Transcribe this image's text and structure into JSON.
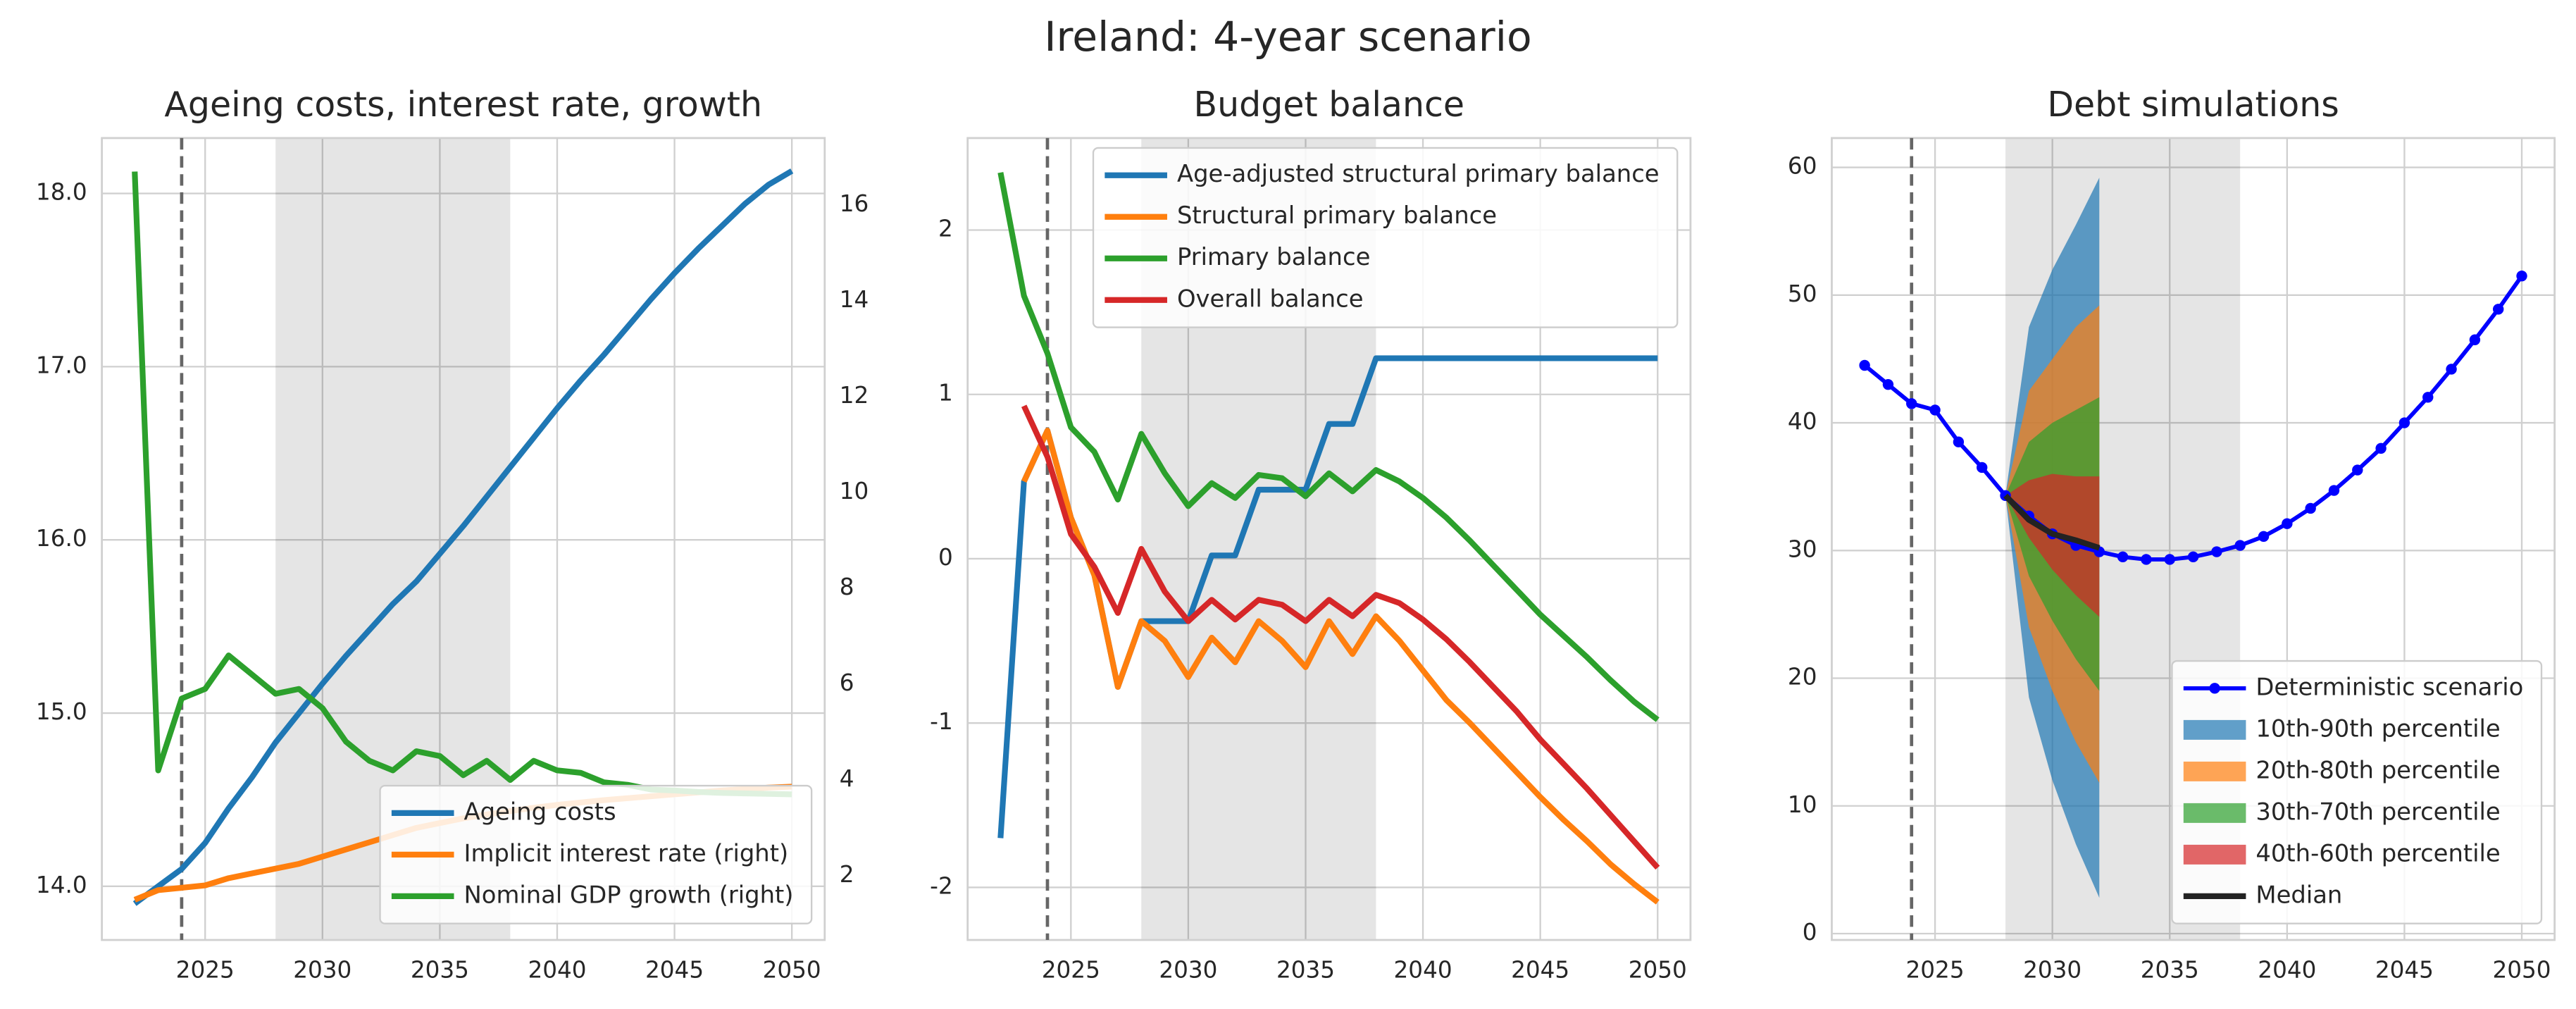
{
  "title": "Ireland: 4-year scenario",
  "chart_data": [
    {
      "type": "line",
      "title": "Ageing costs, interest rate, growth",
      "x": [
        2022,
        2023,
        2024,
        2025,
        2026,
        2027,
        2028,
        2029,
        2030,
        2031,
        2032,
        2033,
        2034,
        2035,
        2036,
        2037,
        2038,
        2039,
        2040,
        2041,
        2042,
        2043,
        2044,
        2045,
        2046,
        2047,
        2048,
        2049,
        2050
      ],
      "xlim": [
        2020.6,
        2051.4
      ],
      "xticks": [
        2025,
        2030,
        2035,
        2040,
        2045,
        2050
      ],
      "ylim": [
        13.69,
        18.32
      ],
      "yticks": [
        {
          "value": 14,
          "label": "14.0"
        },
        {
          "value": 15,
          "label": "15.0"
        },
        {
          "value": 16,
          "label": "16.0"
        },
        {
          "value": 17,
          "label": "17.0"
        },
        {
          "value": 18,
          "label": "18.0"
        }
      ],
      "y2lim": [
        0.66,
        17.4
      ],
      "y2ticks": [
        2,
        4,
        6,
        8,
        10,
        12,
        14,
        16
      ],
      "grid": true,
      "legend": "lower right",
      "vline": 2024,
      "shade": [
        2028,
        2038
      ],
      "series": [
        {
          "name": "Ageing costs",
          "color": "#1f77b4",
          "values": [
            13.9,
            14.0,
            14.1,
            14.25,
            14.45,
            14.63,
            14.83,
            15.0,
            15.17,
            15.33,
            15.48,
            15.63,
            15.76,
            15.92,
            16.08,
            16.25,
            16.42,
            16.59,
            16.76,
            16.92,
            17.07,
            17.23,
            17.39,
            17.54,
            17.68,
            17.81,
            17.94,
            18.05,
            18.13
          ]
        },
        {
          "name": "Implicit interest rate (right)",
          "color": "#ff7f0e",
          "axis": "y2",
          "values": [
            1.5,
            1.7,
            1.75,
            1.8,
            1.95,
            2.05,
            2.15,
            2.25,
            2.4,
            2.55,
            2.7,
            2.85,
            3.0,
            3.1,
            3.2,
            3.28,
            3.35,
            3.42,
            3.48,
            3.53,
            3.58,
            3.62,
            3.66,
            3.7,
            3.74,
            3.78,
            3.81,
            3.84,
            3.86
          ]
        },
        {
          "name": "Nominal GDP growth (right)",
          "color": "#2ca02c",
          "axis": "y2",
          "values": [
            16.7,
            4.2,
            5.7,
            5.9,
            6.6,
            6.2,
            5.8,
            5.9,
            5.5,
            4.8,
            4.4,
            4.2,
            4.6,
            4.5,
            4.1,
            4.4,
            4.0,
            4.4,
            4.2,
            4.15,
            3.95,
            3.9,
            3.8,
            3.78,
            3.75,
            3.73,
            3.72,
            3.71,
            3.7
          ]
        }
      ]
    },
    {
      "type": "line",
      "title": "Budget balance",
      "x": [
        2022,
        2023,
        2024,
        2025,
        2026,
        2027,
        2028,
        2029,
        2030,
        2031,
        2032,
        2033,
        2034,
        2035,
        2036,
        2037,
        2038,
        2039,
        2040,
        2041,
        2042,
        2043,
        2044,
        2045,
        2046,
        2047,
        2048,
        2049,
        2050
      ],
      "xlim": [
        2020.6,
        2051.4
      ],
      "xticks": [
        2025,
        2030,
        2035,
        2040,
        2045,
        2050
      ],
      "ylim": [
        -2.32,
        2.56
      ],
      "yticks": [
        -2,
        -1,
        0,
        1,
        2
      ],
      "grid": true,
      "legend": "upper right",
      "vline": 2024,
      "shade": [
        2028,
        2038
      ],
      "series": [
        {
          "name": "Age-adjusted structural primary balance",
          "color": "#1f77b4",
          "values": [
            -1.7,
            0.47,
            0.78,
            0.25,
            -0.1,
            -0.78,
            -0.38,
            -0.38,
            -0.38,
            0.02,
            0.02,
            0.42,
            0.42,
            0.42,
            0.82,
            0.82,
            1.22,
            1.22,
            1.22,
            1.22,
            1.22,
            1.22,
            1.22,
            1.22,
            1.22,
            1.22,
            1.22,
            1.22,
            1.22
          ]
        },
        {
          "name": "Structural primary balance",
          "color": "#ff7f0e",
          "values": [
            null,
            0.47,
            0.78,
            0.25,
            -0.1,
            -0.78,
            -0.38,
            -0.5,
            -0.72,
            -0.48,
            -0.63,
            -0.38,
            -0.5,
            -0.66,
            -0.38,
            -0.58,
            -0.35,
            -0.5,
            -0.68,
            -0.86,
            -1.0,
            -1.15,
            -1.3,
            -1.45,
            -1.59,
            -1.72,
            -1.86,
            -1.98,
            -2.09
          ]
        },
        {
          "name": "Primary balance",
          "color": "#2ca02c",
          "values": [
            2.35,
            1.6,
            1.25,
            0.8,
            0.65,
            0.36,
            0.76,
            0.52,
            0.32,
            0.46,
            0.37,
            0.51,
            0.49,
            0.38,
            0.52,
            0.41,
            0.54,
            0.47,
            0.37,
            0.25,
            0.11,
            -0.04,
            -0.19,
            -0.34,
            -0.47,
            -0.6,
            -0.74,
            -0.87,
            -0.98
          ]
        },
        {
          "name": "Overall balance",
          "color": "#d62728",
          "values": [
            null,
            0.93,
            0.62,
            0.15,
            -0.05,
            -0.33,
            0.06,
            -0.2,
            -0.38,
            -0.25,
            -0.37,
            -0.25,
            -0.28,
            -0.38,
            -0.25,
            -0.35,
            -0.22,
            -0.27,
            -0.37,
            -0.49,
            -0.63,
            -0.78,
            -0.93,
            -1.1,
            -1.25,
            -1.4,
            -1.56,
            -1.72,
            -1.88
          ]
        }
      ]
    },
    {
      "type": "line",
      "title": "Debt simulations",
      "x": [
        2022,
        2023,
        2024,
        2025,
        2026,
        2027,
        2028,
        2029,
        2030,
        2031,
        2032,
        2033,
        2034,
        2035,
        2036,
        2037,
        2038,
        2039,
        2040,
        2041,
        2042,
        2043,
        2044,
        2045,
        2046,
        2047,
        2048,
        2049,
        2050
      ],
      "xlim": [
        2020.6,
        2051.4
      ],
      "xticks": [
        2025,
        2030,
        2035,
        2040,
        2045,
        2050
      ],
      "ylim": [
        -0.5,
        62.3
      ],
      "yticks": [
        0,
        10,
        20,
        30,
        40,
        50,
        60
      ],
      "grid": true,
      "legend": "lower right",
      "vline": 2024,
      "shade": [
        2028,
        2038
      ],
      "series": [
        {
          "name": "Deterministic scenario",
          "color": "#0000ff",
          "marker": "o",
          "values": [
            44.5,
            43,
            41.5,
            41,
            38.5,
            36.5,
            34.3,
            32.7,
            31.3,
            30.4,
            29.9,
            29.5,
            29.3,
            29.3,
            29.5,
            29.9,
            30.4,
            31.1,
            32.1,
            33.3,
            34.7,
            36.3,
            38.0,
            40.0,
            42.0,
            44.2,
            46.5,
            48.9,
            51.5
          ]
        },
        {
          "name": "10th-90th percentile",
          "color": "#1f77b4",
          "x": [
            2028,
            2029,
            2030,
            2031,
            2032
          ],
          "lower": [
            34.3,
            18.5,
            12.0,
            7.0,
            2.8
          ],
          "upper": [
            34.3,
            47.5,
            52,
            55.5,
            59.2
          ]
        },
        {
          "name": "20th-80th percentile",
          "color": "#ff7f0e",
          "x": [
            2028,
            2029,
            2030,
            2031,
            2032
          ],
          "lower": [
            34.3,
            24,
            19,
            15,
            11.8
          ],
          "upper": [
            34.3,
            42.5,
            45,
            47.5,
            49.2
          ]
        },
        {
          "name": "30th-70th percentile",
          "color": "#2ca02c",
          "x": [
            2028,
            2029,
            2030,
            2031,
            2032
          ],
          "lower": [
            34.3,
            28,
            24.5,
            21.5,
            19
          ],
          "upper": [
            34.3,
            38.5,
            40,
            41,
            42
          ]
        },
        {
          "name": "40th-60th percentile",
          "color": "#d62728",
          "x": [
            2028,
            2029,
            2030,
            2031,
            2032
          ],
          "lower": [
            34.3,
            31,
            28.5,
            26.5,
            24.8
          ],
          "upper": [
            34.3,
            35.5,
            36,
            35.8,
            35.8
          ]
        },
        {
          "name": "Median",
          "color": "#222222",
          "x": [
            2028,
            2029,
            2030,
            2031,
            2032
          ],
          "values": [
            34.3,
            32.4,
            31.3,
            30.8,
            30.2
          ]
        }
      ]
    }
  ]
}
